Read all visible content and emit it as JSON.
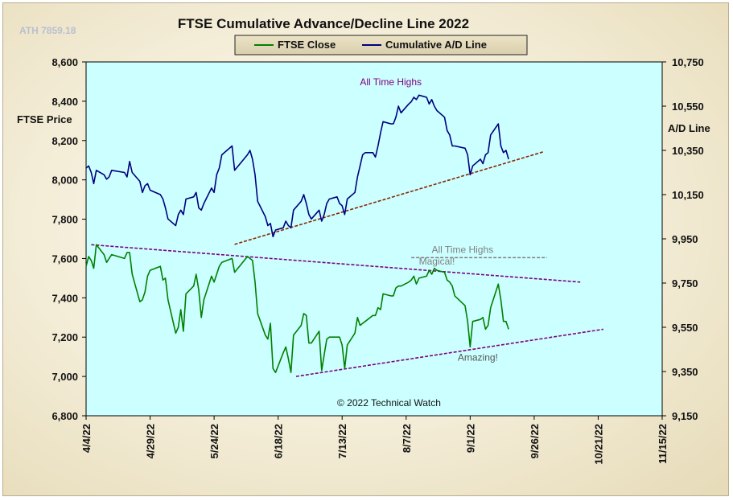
{
  "chart_data": {
    "type": "line",
    "title": "FTSE Cumulative  Advance/Decline Line 2022",
    "ath_label": "ATH 7859.18",
    "copyright": "© 2022 Technical Watch",
    "ylabel_left": "FTSE Price",
    "ylabel_right": "A/D Line",
    "ylim_left": [
      6800,
      8600
    ],
    "ylim_right": [
      9150,
      10750
    ],
    "yticks_left": [
      "8,600",
      "8,400",
      "8,200",
      "8,000",
      "7,800",
      "7,600",
      "7,400",
      "7,200",
      "7,000",
      "6,800"
    ],
    "yticks_right": [
      "10,750",
      "10,550",
      "10,350",
      "10,150",
      "9,950",
      "9,750",
      "9,550",
      "9,350",
      "9,150"
    ],
    "x_dates": [
      "4/4/22",
      "4/29/22",
      "5/24/22",
      "6/18/22",
      "7/13/22",
      "8/7/22",
      "9/1/22",
      "9/26/22",
      "10/21/22",
      "11/15/22"
    ],
    "xlim": [
      "2022-04-04",
      "2022-11-15"
    ],
    "grid": false,
    "legend_position": "top-center",
    "colors": {
      "plot_bg": "#ccffff",
      "ftse": "#008000",
      "ad": "#000080",
      "support": "#8b2500",
      "resistance": "#800080",
      "annotation_purple": "#800080",
      "annotation_gray": "#808080"
    },
    "series": [
      {
        "name": "FTSE Close",
        "axis": "left",
        "points": [
          [
            "2022-04-04",
            7560
          ],
          [
            "2022-04-05",
            7610
          ],
          [
            "2022-04-06",
            7590
          ],
          [
            "2022-04-07",
            7550
          ],
          [
            "2022-04-08",
            7670
          ],
          [
            "2022-04-11",
            7620
          ],
          [
            "2022-04-12",
            7580
          ],
          [
            "2022-04-13",
            7600
          ],
          [
            "2022-04-14",
            7620
          ],
          [
            "2022-04-19",
            7600
          ],
          [
            "2022-04-20",
            7630
          ],
          [
            "2022-04-21",
            7630
          ],
          [
            "2022-04-22",
            7520
          ],
          [
            "2022-04-25",
            7380
          ],
          [
            "2022-04-26",
            7390
          ],
          [
            "2022-04-27",
            7430
          ],
          [
            "2022-04-28",
            7510
          ],
          [
            "2022-04-29",
            7540
          ],
          [
            "2022-05-03",
            7560
          ],
          [
            "2022-05-04",
            7490
          ],
          [
            "2022-05-05",
            7500
          ],
          [
            "2022-05-06",
            7390
          ],
          [
            "2022-05-09",
            7220
          ],
          [
            "2022-05-10",
            7250
          ],
          [
            "2022-05-11",
            7340
          ],
          [
            "2022-05-12",
            7230
          ],
          [
            "2022-05-13",
            7420
          ],
          [
            "2022-05-16",
            7460
          ],
          [
            "2022-05-17",
            7520
          ],
          [
            "2022-05-18",
            7440
          ],
          [
            "2022-05-19",
            7300
          ],
          [
            "2022-05-20",
            7390
          ],
          [
            "2022-05-23",
            7510
          ],
          [
            "2022-05-24",
            7480
          ],
          [
            "2022-05-25",
            7520
          ],
          [
            "2022-05-26",
            7560
          ],
          [
            "2022-05-27",
            7580
          ],
          [
            "2022-05-31",
            7600
          ],
          [
            "2022-06-01",
            7530
          ],
          [
            "2022-06-06",
            7610
          ],
          [
            "2022-06-07",
            7600
          ],
          [
            "2022-06-08",
            7590
          ],
          [
            "2022-06-09",
            7480
          ],
          [
            "2022-06-10",
            7320
          ],
          [
            "2022-06-13",
            7210
          ],
          [
            "2022-06-14",
            7190
          ],
          [
            "2022-06-15",
            7270
          ],
          [
            "2022-06-16",
            7040
          ],
          [
            "2022-06-17",
            7020
          ],
          [
            "2022-06-20",
            7120
          ],
          [
            "2022-06-21",
            7150
          ],
          [
            "2022-06-22",
            7090
          ],
          [
            "2022-06-23",
            7020
          ],
          [
            "2022-06-24",
            7210
          ],
          [
            "2022-06-27",
            7260
          ],
          [
            "2022-06-28",
            7320
          ],
          [
            "2022-06-29",
            7310
          ],
          [
            "2022-06-30",
            7170
          ],
          [
            "2022-07-01",
            7170
          ],
          [
            "2022-07-04",
            7230
          ],
          [
            "2022-07-05",
            7030
          ],
          [
            "2022-07-06",
            7110
          ],
          [
            "2022-07-07",
            7190
          ],
          [
            "2022-07-08",
            7200
          ],
          [
            "2022-07-11",
            7200
          ],
          [
            "2022-07-12",
            7200
          ],
          [
            "2022-07-13",
            7160
          ],
          [
            "2022-07-14",
            7040
          ],
          [
            "2022-07-15",
            7160
          ],
          [
            "2022-07-18",
            7220
          ],
          [
            "2022-07-19",
            7300
          ],
          [
            "2022-07-20",
            7260
          ],
          [
            "2022-07-21",
            7270
          ],
          [
            "2022-07-22",
            7280
          ],
          [
            "2022-07-25",
            7310
          ],
          [
            "2022-07-26",
            7310
          ],
          [
            "2022-07-27",
            7350
          ],
          [
            "2022-07-28",
            7340
          ],
          [
            "2022-07-29",
            7420
          ],
          [
            "2022-08-01",
            7410
          ],
          [
            "2022-08-02",
            7410
          ],
          [
            "2022-08-03",
            7450
          ],
          [
            "2022-08-04",
            7460
          ],
          [
            "2022-08-05",
            7460
          ],
          [
            "2022-08-08",
            7480
          ],
          [
            "2022-08-09",
            7490
          ],
          [
            "2022-08-10",
            7510
          ],
          [
            "2022-08-11",
            7470
          ],
          [
            "2022-08-12",
            7500
          ],
          [
            "2022-08-15",
            7510
          ],
          [
            "2022-08-16",
            7540
          ],
          [
            "2022-08-17",
            7520
          ],
          [
            "2022-08-18",
            7550
          ],
          [
            "2022-08-19",
            7540
          ],
          [
            "2022-08-22",
            7530
          ],
          [
            "2022-08-23",
            7490
          ],
          [
            "2022-08-24",
            7480
          ],
          [
            "2022-08-25",
            7460
          ],
          [
            "2022-08-26",
            7410
          ],
          [
            "2022-08-30",
            7360
          ],
          [
            "2022-08-31",
            7280
          ],
          [
            "2022-09-01",
            7150
          ],
          [
            "2022-09-02",
            7280
          ],
          [
            "2022-09-05",
            7290
          ],
          [
            "2022-09-06",
            7300
          ],
          [
            "2022-09-07",
            7240
          ],
          [
            "2022-09-08",
            7260
          ],
          [
            "2022-09-09",
            7350
          ],
          [
            "2022-09-12",
            7470
          ],
          [
            "2022-09-13",
            7390
          ],
          [
            "2022-09-14",
            7280
          ],
          [
            "2022-09-15",
            7280
          ],
          [
            "2022-09-16",
            7240
          ]
        ]
      },
      {
        "name": "Cumulative A/D Line",
        "axis": "right",
        "points": [
          [
            "2022-04-04",
            10270
          ],
          [
            "2022-04-05",
            10280
          ],
          [
            "2022-04-06",
            10250
          ],
          [
            "2022-04-07",
            10200
          ],
          [
            "2022-04-08",
            10260
          ],
          [
            "2022-04-11",
            10240
          ],
          [
            "2022-04-12",
            10220
          ],
          [
            "2022-04-13",
            10230
          ],
          [
            "2022-04-14",
            10260
          ],
          [
            "2022-04-19",
            10250
          ],
          [
            "2022-04-20",
            10230
          ],
          [
            "2022-04-21",
            10300
          ],
          [
            "2022-04-22",
            10250
          ],
          [
            "2022-04-25",
            10210
          ],
          [
            "2022-04-26",
            10160
          ],
          [
            "2022-04-27",
            10190
          ],
          [
            "2022-04-28",
            10200
          ],
          [
            "2022-04-29",
            10170
          ],
          [
            "2022-05-03",
            10150
          ],
          [
            "2022-05-04",
            10130
          ],
          [
            "2022-05-05",
            10090
          ],
          [
            "2022-05-06",
            10040
          ],
          [
            "2022-05-09",
            10010
          ],
          [
            "2022-05-10",
            10060
          ],
          [
            "2022-05-11",
            10080
          ],
          [
            "2022-05-12",
            10060
          ],
          [
            "2022-05-13",
            10130
          ],
          [
            "2022-05-16",
            10140
          ],
          [
            "2022-05-17",
            10160
          ],
          [
            "2022-05-18",
            10090
          ],
          [
            "2022-05-19",
            10080
          ],
          [
            "2022-05-20",
            10110
          ],
          [
            "2022-05-23",
            10180
          ],
          [
            "2022-05-24",
            10160
          ],
          [
            "2022-05-25",
            10240
          ],
          [
            "2022-05-26",
            10270
          ],
          [
            "2022-05-27",
            10330
          ],
          [
            "2022-05-31",
            10370
          ],
          [
            "2022-06-01",
            10260
          ],
          [
            "2022-06-06",
            10330
          ],
          [
            "2022-06-07",
            10350
          ],
          [
            "2022-06-08",
            10310
          ],
          [
            "2022-06-09",
            10240
          ],
          [
            "2022-06-10",
            10120
          ],
          [
            "2022-06-13",
            10050
          ],
          [
            "2022-06-14",
            10010
          ],
          [
            "2022-06-15",
            10020
          ],
          [
            "2022-06-16",
            9960
          ],
          [
            "2022-06-17",
            9990
          ],
          [
            "2022-06-20",
            10000
          ],
          [
            "2022-06-21",
            10030
          ],
          [
            "2022-06-22",
            10010
          ],
          [
            "2022-06-23",
            10000
          ],
          [
            "2022-06-24",
            10080
          ],
          [
            "2022-06-27",
            10120
          ],
          [
            "2022-06-28",
            10150
          ],
          [
            "2022-06-29",
            10110
          ],
          [
            "2022-06-30",
            10060
          ],
          [
            "2022-07-01",
            10040
          ],
          [
            "2022-07-04",
            10080
          ],
          [
            "2022-07-05",
            10030
          ],
          [
            "2022-07-06",
            10060
          ],
          [
            "2022-07-07",
            10110
          ],
          [
            "2022-07-08",
            10130
          ],
          [
            "2022-07-11",
            10140
          ],
          [
            "2022-07-12",
            10110
          ],
          [
            "2022-07-13",
            10100
          ],
          [
            "2022-07-14",
            10060
          ],
          [
            "2022-07-15",
            10130
          ],
          [
            "2022-07-18",
            10160
          ],
          [
            "2022-07-19",
            10230
          ],
          [
            "2022-07-20",
            10280
          ],
          [
            "2022-07-21",
            10330
          ],
          [
            "2022-07-22",
            10340
          ],
          [
            "2022-07-25",
            10340
          ],
          [
            "2022-07-26",
            10320
          ],
          [
            "2022-07-27",
            10370
          ],
          [
            "2022-07-28",
            10430
          ],
          [
            "2022-07-29",
            10480
          ],
          [
            "2022-08-01",
            10470
          ],
          [
            "2022-08-02",
            10470
          ],
          [
            "2022-08-03",
            10500
          ],
          [
            "2022-08-04",
            10550
          ],
          [
            "2022-08-05",
            10520
          ],
          [
            "2022-08-08",
            10560
          ],
          [
            "2022-08-09",
            10570
          ],
          [
            "2022-08-10",
            10590
          ],
          [
            "2022-08-11",
            10580
          ],
          [
            "2022-08-12",
            10600
          ],
          [
            "2022-08-15",
            10590
          ],
          [
            "2022-08-16",
            10560
          ],
          [
            "2022-08-17",
            10580
          ],
          [
            "2022-08-18",
            10550
          ],
          [
            "2022-08-19",
            10530
          ],
          [
            "2022-08-22",
            10500
          ],
          [
            "2022-08-23",
            10440
          ],
          [
            "2022-08-24",
            10420
          ],
          [
            "2022-08-25",
            10370
          ],
          [
            "2022-08-26",
            10370
          ],
          [
            "2022-08-30",
            10360
          ],
          [
            "2022-08-31",
            10330
          ],
          [
            "2022-09-01",
            10240
          ],
          [
            "2022-09-02",
            10280
          ],
          [
            "2022-09-05",
            10310
          ],
          [
            "2022-09-06",
            10290
          ],
          [
            "2022-09-07",
            10330
          ],
          [
            "2022-09-08",
            10340
          ],
          [
            "2022-09-09",
            10420
          ],
          [
            "2022-09-12",
            10470
          ],
          [
            "2022-09-13",
            10370
          ],
          [
            "2022-09-14",
            10340
          ],
          [
            "2022-09-15",
            10350
          ],
          [
            "2022-09-16",
            10310
          ]
        ]
      }
    ],
    "trendlines": [
      {
        "axis": "right",
        "color": "#8b2500",
        "start": [
          "2022-06-01",
          9925
        ],
        "end": [
          "2022-09-30",
          10345
        ]
      },
      {
        "axis": "left",
        "color": "#800080",
        "start": [
          "2022-04-06",
          7670
        ],
        "end": [
          "2022-10-14",
          7480
        ]
      },
      {
        "axis": "left",
        "color": "#800080",
        "start": [
          "2022-06-25",
          7000
        ],
        "end": [
          "2022-10-23",
          7240
        ]
      },
      {
        "axis": "right",
        "color": "#808080",
        "start": [
          "2022-08-09",
          9865
        ],
        "end": [
          "2022-10-01",
          9865
        ]
      }
    ],
    "annotations": [
      {
        "text": "All Time Highs",
        "axis": "right",
        "date": "2022-08-01",
        "value": 10645,
        "color": "#800080"
      },
      {
        "text": "All Time Highs",
        "axis": "right",
        "date": "2022-08-29",
        "value": 9886,
        "color": "#808080"
      },
      {
        "text": "Magical!",
        "axis": "left",
        "date": "2022-08-19",
        "value": 7570,
        "color": "#808080"
      },
      {
        "text": "Amazing!",
        "axis": "left",
        "date": "2022-09-04",
        "value": 7080,
        "color": "#555555"
      }
    ]
  }
}
